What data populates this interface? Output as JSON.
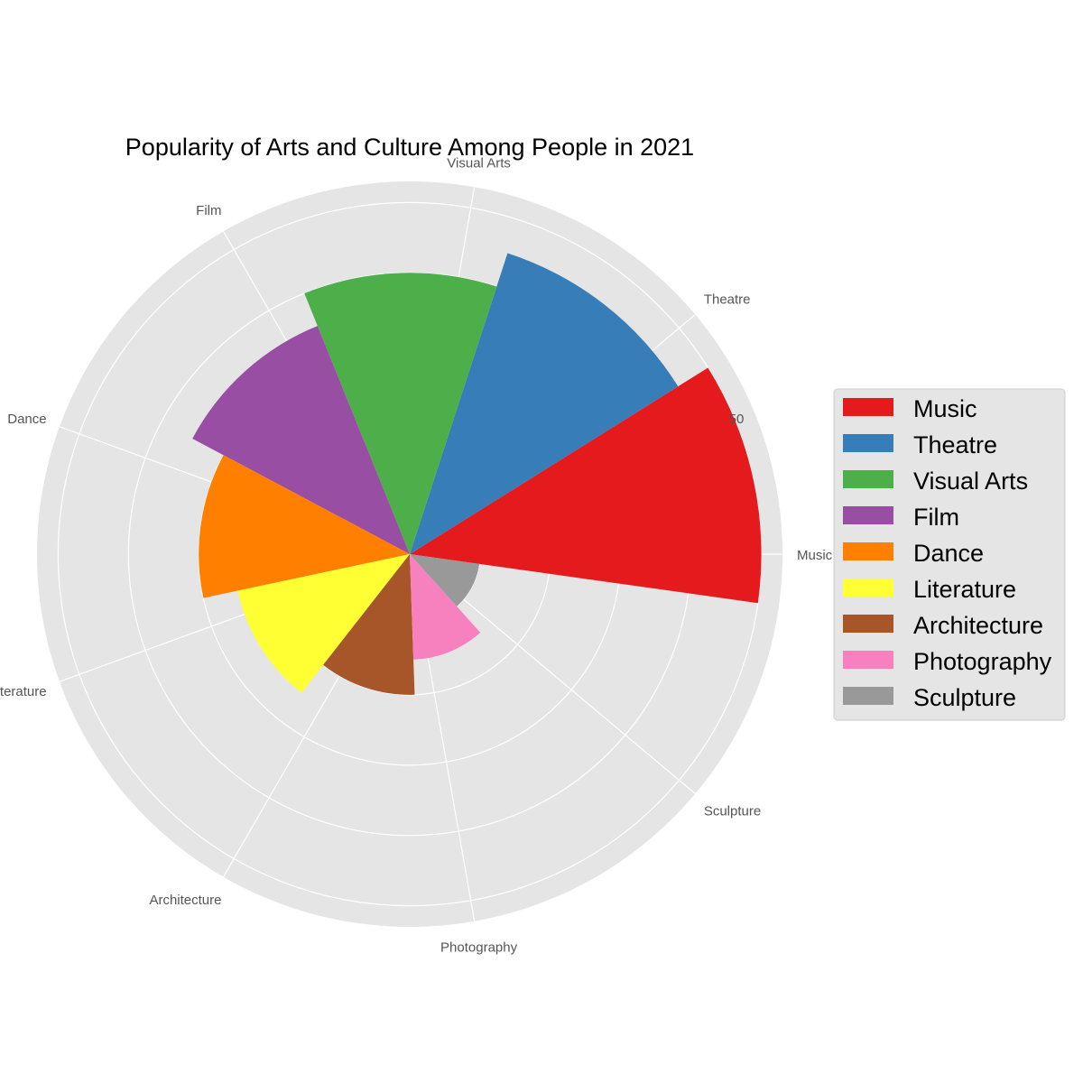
{
  "chart_data": {
    "type": "polar-bar",
    "title": "Popularity of Arts and Culture Among People in 2021",
    "categories": [
      "Music",
      "Theatre",
      "Visual Arts",
      "Film",
      "Dance",
      "Literature",
      "Architecture",
      "Photography",
      "Sculpture"
    ],
    "values": [
      50,
      45,
      40,
      35,
      30,
      25,
      20,
      15,
      10
    ],
    "colors": [
      "#e41a1c",
      "#377eb8",
      "#4daf4a",
      "#984ea3",
      "#ff7f00",
      "#ffff33",
      "#a65628",
      "#f781bf",
      "#999999"
    ],
    "radial_ticks": [
      10,
      20,
      30,
      40,
      50
    ],
    "radial_tick_labels_shown": [
      "50"
    ],
    "rmax": 53,
    "grid": true,
    "legend_position": "right",
    "legend": [
      "Music",
      "Theatre",
      "Visual Arts",
      "Film",
      "Dance",
      "Literature",
      "Architecture",
      "Photography",
      "Sculpture"
    ]
  }
}
